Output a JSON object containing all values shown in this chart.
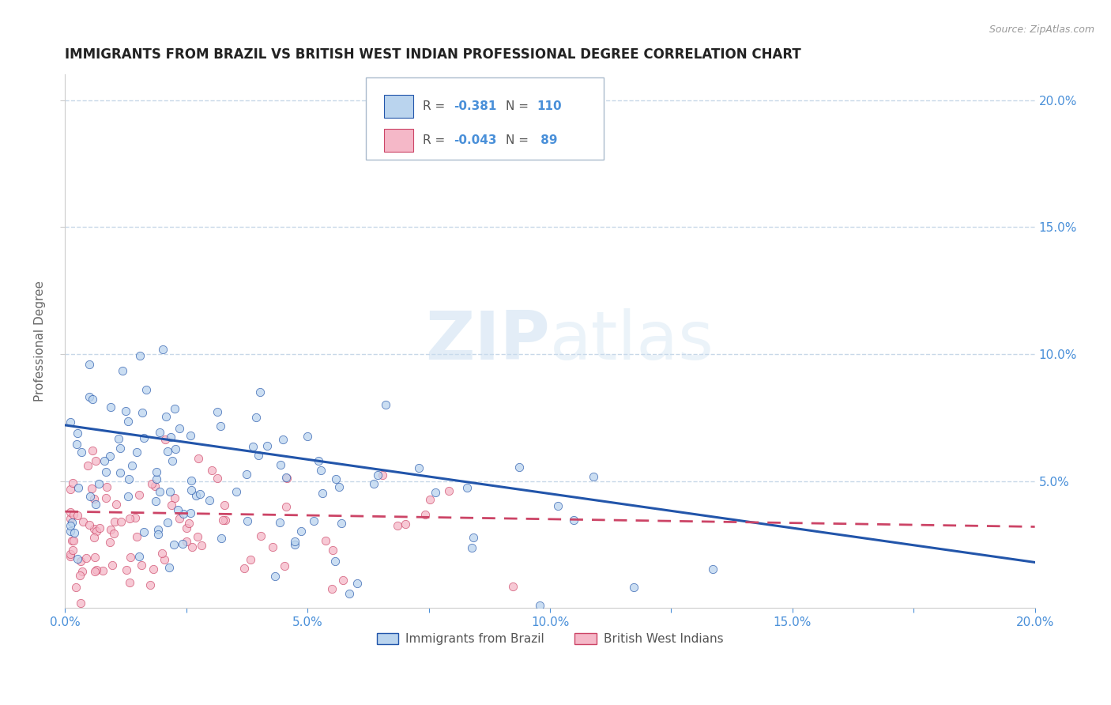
{
  "title": "IMMIGRANTS FROM BRAZIL VS BRITISH WEST INDIAN PROFESSIONAL DEGREE CORRELATION CHART",
  "source_text": "Source: ZipAtlas.com",
  "ylabel": "Professional Degree",
  "xlim": [
    0.0,
    0.2
  ],
  "ylim": [
    0.0,
    0.21
  ],
  "xtick_labels": [
    "0.0%",
    "",
    "5.0%",
    "",
    "10.0%",
    "",
    "15.0%",
    "",
    "20.0%"
  ],
  "xtick_vals": [
    0.0,
    0.025,
    0.05,
    0.075,
    0.1,
    0.125,
    0.15,
    0.175,
    0.2
  ],
  "ytick_labels_right": [
    "5.0%",
    "10.0%",
    "15.0%",
    "20.0%"
  ],
  "ytick_vals": [
    0.05,
    0.1,
    0.15,
    0.2
  ],
  "watermark_zip": "ZIP",
  "watermark_atlas": "atlas",
  "series": [
    {
      "name": "Immigrants from Brazil",
      "R": -0.381,
      "N": 110,
      "color_scatter": "#bad4ee",
      "color_line": "#2255aa",
      "marker": "o"
    },
    {
      "name": "British West Indians",
      "R": -0.043,
      "N": 89,
      "color_scatter": "#f5b8c8",
      "color_line": "#cc4466",
      "marker": "o"
    }
  ],
  "grid_color": "#c8d8e8",
  "background_color": "#ffffff",
  "title_color": "#222222",
  "axis_label_color": "#666666",
  "tick_label_color": "#4a90d9",
  "legend_box_color_1": "#bad4ee",
  "legend_box_color_2": "#f5b8c8",
  "legend_text_color": "#555555",
  "r_n_color": "#4a90d9",
  "brazil_trend_start_y": 0.072,
  "brazil_trend_end_y": 0.018,
  "bwi_trend_start_y": 0.038,
  "bwi_trend_end_y": 0.032
}
